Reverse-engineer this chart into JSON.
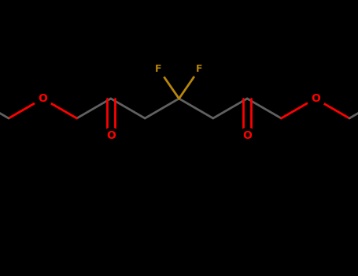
{
  "bg_color": "#000000",
  "bond_color": "#606060",
  "oxygen_color": "#ff0000",
  "fluorine_color": "#b8860b",
  "line_width": 2.0,
  "figsize": [
    4.55,
    3.5
  ],
  "dpi": 100,
  "xlim": [
    0,
    9.1
  ],
  "ylim": [
    0,
    7.0
  ]
}
